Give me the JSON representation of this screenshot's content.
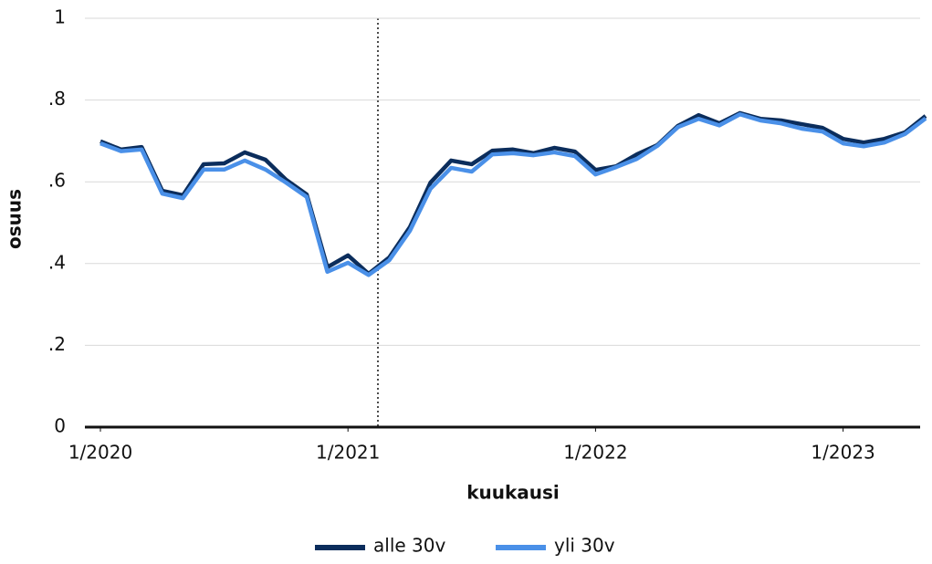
{
  "chart_data": {
    "type": "line",
    "x_label": "kuukausi",
    "y_label": "osuus",
    "categories": [
      "1/2020",
      null,
      null,
      null,
      null,
      null,
      null,
      null,
      null,
      null,
      null,
      null,
      "1/2021",
      null,
      null,
      null,
      null,
      null,
      null,
      null,
      null,
      null,
      null,
      null,
      "1/2022",
      null,
      null,
      null,
      null,
      null,
      null,
      null,
      null,
      null,
      null,
      null,
      "1/2023",
      null,
      null,
      null,
      null
    ],
    "series": [
      {
        "name": "alle 30v",
        "color": "#0b2d5c",
        "values": [
          0.699,
          0.679,
          0.685,
          0.578,
          0.567,
          0.643,
          0.645,
          0.672,
          0.654,
          0.605,
          0.569,
          0.391,
          0.42,
          0.375,
          0.415,
          0.489,
          0.598,
          0.652,
          0.643,
          0.676,
          0.679,
          0.67,
          0.683,
          0.674,
          0.629,
          0.638,
          0.667,
          0.69,
          0.737,
          0.763,
          0.743,
          0.768,
          0.754,
          0.75,
          0.741,
          0.732,
          0.705,
          0.696,
          0.705,
          0.721,
          0.761
        ]
      },
      {
        "name": "yli 30v",
        "color": "#4a90e8",
        "values": [
          0.694,
          0.675,
          0.679,
          0.571,
          0.56,
          0.63,
          0.63,
          0.652,
          0.63,
          0.598,
          0.563,
          0.38,
          0.402,
          0.372,
          0.408,
          0.48,
          0.583,
          0.634,
          0.625,
          0.667,
          0.67,
          0.665,
          0.672,
          0.663,
          0.618,
          0.636,
          0.656,
          0.688,
          0.734,
          0.754,
          0.738,
          0.765,
          0.75,
          0.743,
          0.73,
          0.723,
          0.694,
          0.687,
          0.696,
          0.717,
          0.755
        ]
      }
    ],
    "ylim": [
      0,
      1
    ],
    "yticks": [
      0,
      {
        "value": 0.2,
        "label": ".2"
      },
      {
        "value": 0.4,
        "label": ".4"
      },
      {
        "value": 0.6,
        "label": ".6"
      },
      {
        "value": 0.8,
        "label": ".8"
      },
      1
    ],
    "grid": true
  }
}
